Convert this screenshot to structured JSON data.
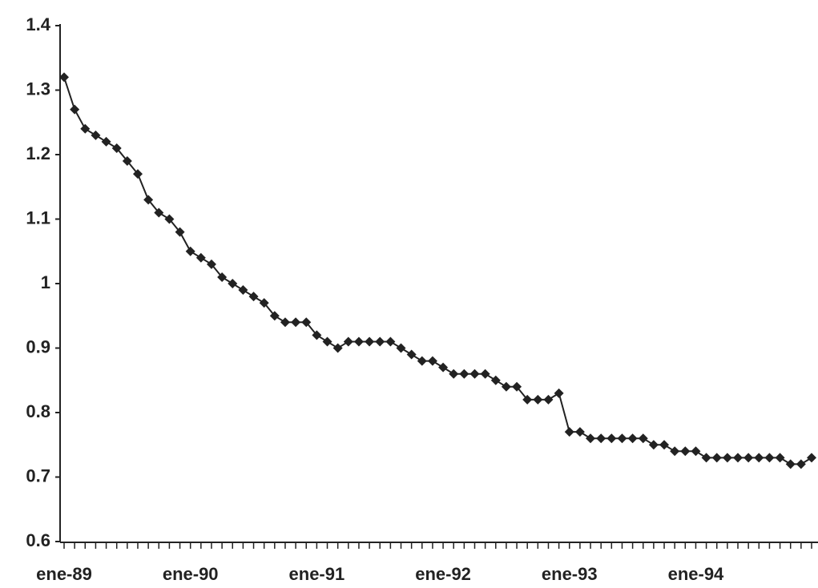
{
  "chart_data": {
    "type": "line",
    "categories": [
      "ene-89",
      null,
      null,
      null,
      null,
      null,
      null,
      null,
      null,
      null,
      null,
      null,
      "ene-90",
      null,
      null,
      null,
      null,
      null,
      null,
      null,
      null,
      null,
      null,
      null,
      "ene-91",
      null,
      null,
      null,
      null,
      null,
      null,
      null,
      null,
      null,
      null,
      null,
      "ene-92",
      null,
      null,
      null,
      null,
      null,
      null,
      null,
      null,
      null,
      null,
      null,
      "ene-93",
      null,
      null,
      null,
      null,
      null,
      null,
      null,
      null,
      null,
      null,
      null,
      "ene-94",
      null,
      null,
      null,
      null,
      null,
      null,
      null,
      null,
      null,
      null,
      null
    ],
    "values": [
      1.32,
      1.27,
      1.24,
      1.23,
      1.22,
      1.21,
      1.19,
      1.17,
      1.13,
      1.11,
      1.1,
      1.08,
      1.05,
      1.04,
      1.03,
      1.01,
      1.0,
      0.99,
      0.98,
      0.97,
      0.95,
      0.94,
      0.94,
      0.94,
      0.92,
      0.91,
      0.9,
      0.91,
      0.91,
      0.91,
      0.91,
      0.91,
      0.9,
      0.89,
      0.88,
      0.88,
      0.87,
      0.86,
      0.86,
      0.86,
      0.86,
      0.85,
      0.84,
      0.84,
      0.82,
      0.82,
      0.82,
      0.83,
      0.77,
      0.77,
      0.76,
      0.76,
      0.76,
      0.76,
      0.76,
      0.76,
      0.75,
      0.75,
      0.74,
      0.74,
      0.74,
      0.73,
      0.73,
      0.73,
      0.73,
      0.73,
      0.73,
      0.73,
      0.73,
      0.72,
      0.72,
      0.73
    ],
    "color": "#222222",
    "ylim": [
      0.6,
      1.4
    ],
    "yticks": [
      0.6,
      0.7,
      0.8,
      0.9,
      1,
      1.1,
      1.2,
      1.3,
      1.4
    ],
    "grid": false
  }
}
